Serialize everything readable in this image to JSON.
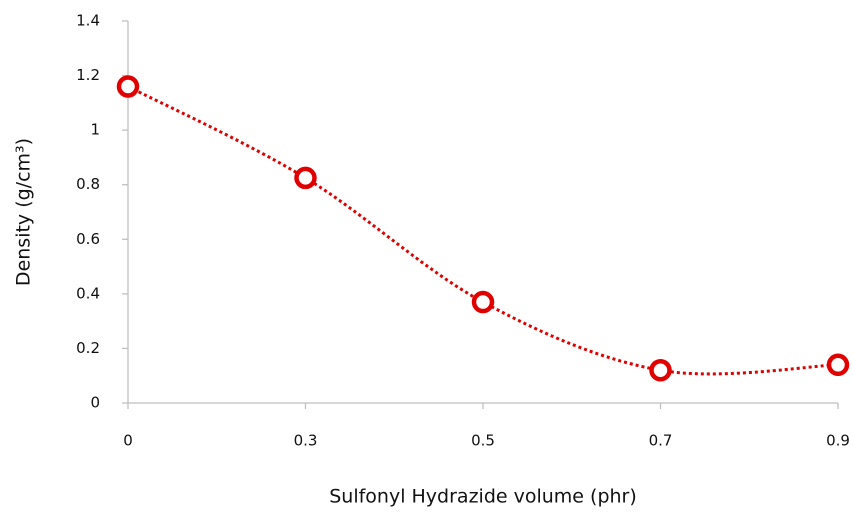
{
  "chart_data": {
    "type": "line",
    "x_label": "Sulfonyl Hydrazide volume (phr)",
    "y_label": "Density (g/cm³)",
    "categories": [
      "0",
      "0.3",
      "0.5",
      "0.7",
      "0.9"
    ],
    "series": [
      {
        "name": null,
        "color": "#e00000",
        "values": [
          1.16,
          0.825,
          0.37,
          0.12,
          0.14
        ]
      }
    ],
    "ylim": [
      0,
      1.4
    ],
    "yticks": [
      0,
      0.2,
      0.4,
      0.6,
      0.8,
      1,
      1.2,
      1.4
    ],
    "smooth": true,
    "line_style": "dotted",
    "grid": false
  }
}
